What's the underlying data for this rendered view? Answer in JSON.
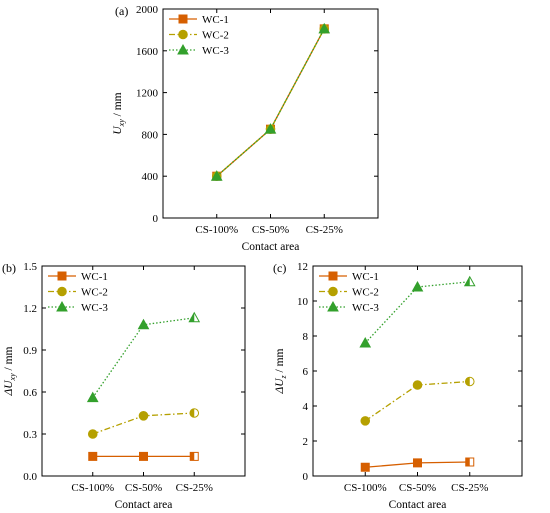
{
  "chart_data": [
    {
      "id": "a",
      "type": "line",
      "panel_label": "(a)",
      "categories": [
        "CS-100%",
        "CS-50%",
        "CS-25%"
      ],
      "xlabel": "Contact area",
      "ylabel": {
        "base": "U",
        "sub": "xy",
        "unit": " / mm"
      },
      "ylim": [
        0,
        2000
      ],
      "yticks": [
        0,
        400,
        800,
        1200,
        1600,
        2000
      ],
      "legend_position": "top-left",
      "series": [
        {
          "name": "WC-1",
          "values": [
            400,
            850,
            1810
          ],
          "color": "#d65f00",
          "marker": "square",
          "dash": "solid"
        },
        {
          "name": "WC-2",
          "values": [
            400,
            850,
            1810
          ],
          "color": "#b5a000",
          "marker": "circle",
          "dash": "dashdot"
        },
        {
          "name": "WC-3",
          "values": [
            400,
            850,
            1810
          ],
          "color": "#33a02c",
          "marker": "triangle",
          "dash": "dotted"
        }
      ]
    },
    {
      "id": "b",
      "type": "line",
      "panel_label": "(b)",
      "categories": [
        "CS-100%",
        "CS-50%",
        "CS-25%"
      ],
      "xlabel": "Contact area",
      "ylabel": {
        "base": "ΔU",
        "sub": "xy",
        "unit": " / mm"
      },
      "ylim": [
        0,
        1.5
      ],
      "yticks": [
        "0.0",
        "0.3",
        "0.6",
        "0.9",
        "1.2",
        "1.5"
      ],
      "legend_position": "top-left",
      "series": [
        {
          "name": "WC-1",
          "values": [
            0.14,
            0.14,
            0.14
          ],
          "color": "#d65f00",
          "marker": "square",
          "dash": "solid"
        },
        {
          "name": "WC-2",
          "values": [
            0.3,
            0.43,
            0.45
          ],
          "color": "#b5a000",
          "marker": "circle",
          "dash": "dashdot"
        },
        {
          "name": "WC-3",
          "values": [
            0.56,
            1.08,
            1.13
          ],
          "color": "#33a02c",
          "marker": "triangle",
          "dash": "dotted"
        }
      ]
    },
    {
      "id": "c",
      "type": "line",
      "panel_label": "(c)",
      "categories": [
        "CS-100%",
        "CS-50%",
        "CS-25%"
      ],
      "xlabel": "Contact area",
      "ylabel": {
        "base": "ΔU",
        "sub": "z",
        "unit": " / mm"
      },
      "ylim": [
        0,
        12
      ],
      "yticks": [
        0,
        2,
        4,
        6,
        8,
        10,
        12
      ],
      "legend_position": "top-left",
      "series": [
        {
          "name": "WC-1",
          "values": [
            0.5,
            0.75,
            0.8
          ],
          "color": "#d65f00",
          "marker": "square",
          "dash": "solid"
        },
        {
          "name": "WC-2",
          "values": [
            3.15,
            5.2,
            5.4
          ],
          "color": "#b5a000",
          "marker": "circle",
          "dash": "dashdot"
        },
        {
          "name": "WC-3",
          "values": [
            7.6,
            10.8,
            11.1
          ],
          "color": "#33a02c",
          "marker": "triangle",
          "dash": "dotted"
        }
      ]
    }
  ]
}
